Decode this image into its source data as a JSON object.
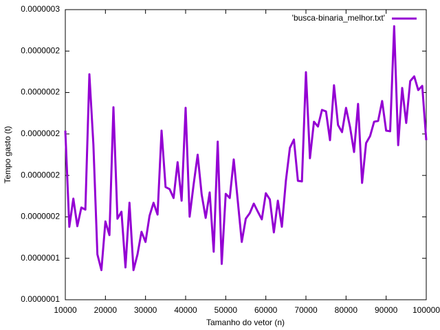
{
  "chart_data": {
    "type": "line",
    "xlabel": "Tamanho do vetor (n)",
    "ylabel": "Tempo gasto (t)",
    "x": [
      10000,
      11000,
      12000,
      13000,
      14000,
      15000,
      16000,
      17000,
      18000,
      19000,
      20000,
      21000,
      22000,
      23000,
      24000,
      25000,
      26000,
      27000,
      28000,
      29000,
      30000,
      31000,
      32000,
      33000,
      34000,
      35000,
      36000,
      37000,
      38000,
      39000,
      40000,
      41000,
      42000,
      43000,
      44000,
      45000,
      46000,
      47000,
      48000,
      49000,
      50000,
      51000,
      52000,
      53000,
      54000,
      55000,
      56000,
      57000,
      58000,
      59000,
      60000,
      61000,
      62000,
      63000,
      64000,
      65000,
      66000,
      67000,
      68000,
      69000,
      70000,
      71000,
      72000,
      73000,
      74000,
      75000,
      76000,
      77000,
      78000,
      79000,
      80000,
      81000,
      82000,
      83000,
      84000,
      85000,
      86000,
      87000,
      88000,
      89000,
      90000,
      91000,
      92000,
      93000,
      94000,
      95000,
      96000,
      97000,
      98000,
      99000,
      100000
    ],
    "series": [
      {
        "name": "'busca-binaria_melhor.txt'",
        "color": "#9400d3",
        "values": [
          2.016e-07,
          1.552e-07,
          1.688e-07,
          1.555e-07,
          1.645e-07,
          1.635e-07,
          2.288e-07,
          1.95e-07,
          1.419e-07,
          1.343e-07,
          1.578e-07,
          1.512e-07,
          2.129e-07,
          1.591e-07,
          1.625e-07,
          1.356e-07,
          1.668e-07,
          1.343e-07,
          1.419e-07,
          1.528e-07,
          1.479e-07,
          1.605e-07,
          1.668e-07,
          1.611e-07,
          2.016e-07,
          1.744e-07,
          1.734e-07,
          1.691e-07,
          1.864e-07,
          1.678e-07,
          2.126e-07,
          1.601e-07,
          1.757e-07,
          1.9e-07,
          1.708e-07,
          1.595e-07,
          1.718e-07,
          1.432e-07,
          1.963e-07,
          1.373e-07,
          1.711e-07,
          1.691e-07,
          1.877e-07,
          1.678e-07,
          1.479e-07,
          1.591e-07,
          1.618e-07,
          1.664e-07,
          1.625e-07,
          1.588e-07,
          1.714e-07,
          1.684e-07,
          1.525e-07,
          1.678e-07,
          1.552e-07,
          1.774e-07,
          1.933e-07,
          1.973e-07,
          1.774e-07,
          1.771e-07,
          2.298e-07,
          1.883e-07,
          2.059e-07,
          2.036e-07,
          2.116e-07,
          2.109e-07,
          1.97e-07,
          2.235e-07,
          2.043e-07,
          2.009e-07,
          2.126e-07,
          2.033e-07,
          1.913e-07,
          2.145e-07,
          1.764e-07,
          1.956e-07,
          1.99e-07,
          2.059e-07,
          2.063e-07,
          2.159e-07,
          2.016e-07,
          2.013e-07,
          2.52e-07,
          1.946e-07,
          2.222e-07,
          2.053e-07,
          2.255e-07,
          2.278e-07,
          2.212e-07,
          2.232e-07,
          1.97e-07
        ]
      }
    ],
    "xlim": [
      10000,
      100000
    ],
    "xticks": [
      10000,
      20000,
      30000,
      40000,
      50000,
      60000,
      70000,
      80000,
      90000,
      100000
    ],
    "ylim": [
      1.2e-07,
      2.6e-07
    ],
    "yticks": [
      {
        "value": 1.2e-07,
        "label": "0.0000001"
      },
      {
        "value": 1.4e-07,
        "label": "0.0000001"
      },
      {
        "value": 1.6e-07,
        "label": "0.0000002"
      },
      {
        "value": 1.8e-07,
        "label": "0.0000002"
      },
      {
        "value": 2e-07,
        "label": "0.0000002"
      },
      {
        "value": 2.2e-07,
        "label": "0.0000002"
      },
      {
        "value": 2.4e-07,
        "label": "0.0000002"
      },
      {
        "value": 2.6e-07,
        "label": "0.0000003"
      }
    ],
    "grid": false,
    "legend": "top-right"
  }
}
